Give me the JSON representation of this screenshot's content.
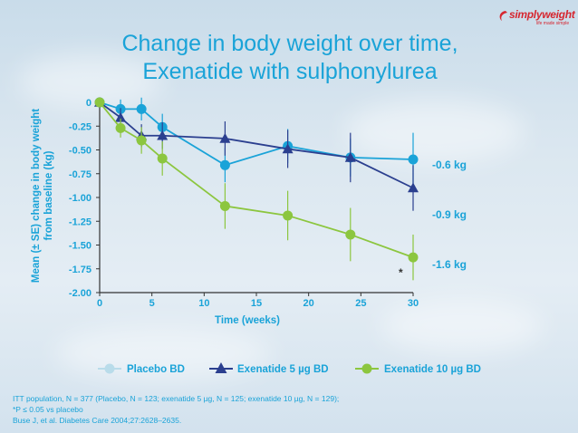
{
  "brand": {
    "name": "simplyweight",
    "tagline": "life made simple"
  },
  "title_lines": [
    "Change in body weight over time,",
    "Exenatide with sulphonylurea"
  ],
  "chart_data": {
    "type": "line",
    "title": "Change in body weight over time, Exenatide with sulphonylurea",
    "xlabel": "Time (weeks)",
    "ylabel": "Mean (± SE) change in body weight from baseline (kg)",
    "xlim": [
      0,
      30
    ],
    "ylim": [
      -2.0,
      0
    ],
    "x_ticks": [
      "0",
      "5",
      "10",
      "15",
      "20",
      "25",
      "30"
    ],
    "y_ticks": [
      "0",
      "-0.25",
      "-0.50",
      "-0.75",
      "-1.00",
      "-1.25",
      "-1.50",
      "-1.75",
      "-2.00"
    ],
    "grid": false,
    "legend_position": "bottom",
    "series": [
      {
        "name": "Placebo BD",
        "color": "#1aa3d8",
        "marker": "circle",
        "x": [
          0,
          2,
          4,
          6,
          12,
          18,
          24,
          30
        ],
        "y": [
          0,
          -0.07,
          -0.07,
          -0.26,
          -0.66,
          -0.46,
          -0.58,
          -0.6
        ],
        "se": [
          0,
          0.1,
          0.12,
          0.14,
          0.18,
          0.18,
          0.2,
          0.28
        ]
      },
      {
        "name": "Exenatide 5 µg BD",
        "color": "#2b3f8f",
        "marker": "triangle",
        "x": [
          0,
          2,
          4,
          6,
          12,
          18,
          24,
          30
        ],
        "y": [
          0,
          -0.16,
          -0.35,
          -0.35,
          -0.38,
          -0.49,
          -0.58,
          -0.9
        ],
        "se": [
          0,
          0.1,
          0.12,
          0.14,
          0.18,
          0.2,
          0.26,
          0.24
        ]
      },
      {
        "name": "Exenatide 10 µg BD",
        "color": "#8cc63f",
        "marker": "circle",
        "x": [
          0,
          2,
          4,
          6,
          12,
          18,
          24,
          30
        ],
        "y": [
          0,
          -0.27,
          -0.4,
          -0.59,
          -1.09,
          -1.19,
          -1.39,
          -1.63
        ],
        "se": [
          0,
          0.1,
          0.14,
          0.18,
          0.24,
          0.26,
          0.28,
          0.24
        ]
      }
    ],
    "end_labels": [
      "-0.6 kg",
      "-0.9 kg",
      "-1.6 kg"
    ],
    "annotation": "*"
  },
  "legend": [
    "Placebo BD",
    "Exenatide 5 µg BD",
    "Exenatide 10 µg BD"
  ],
  "footnotes": [
    "ITT population, N = 377  (Placebo, N = 123; exenatide 5 µg, N = 125; exenatide 10 µg, N = 129);",
    "*P ≤ 0.05 vs placebo",
    "Buse J, et al. Diabetes Care 2004;27:2628–2635."
  ]
}
